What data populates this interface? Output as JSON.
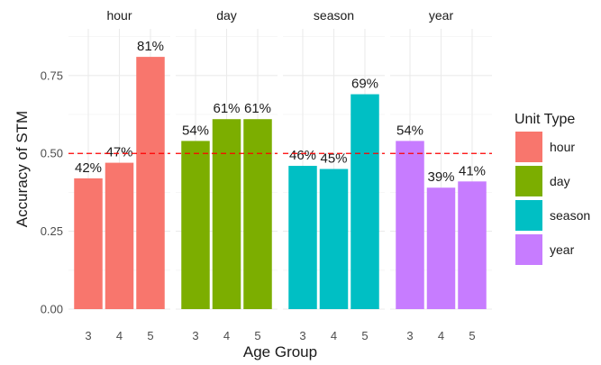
{
  "chart_data": {
    "type": "bar",
    "facet_by": "Unit Type",
    "xlabel": "Age Group",
    "ylabel": "Accuracy of STM",
    "ylim": [
      0,
      0.9
    ],
    "y_ticks": [
      0.0,
      0.25,
      0.5,
      0.75
    ],
    "y_tick_labels": [
      "0.00",
      "0.25",
      "0.50",
      "0.75"
    ],
    "reference_line": {
      "y": 0.5,
      "style": "dashed",
      "color": "#ff0000"
    },
    "grid": true,
    "legend_position": "right",
    "legend": {
      "title": "Unit Type",
      "entries": [
        {
          "label": "hour",
          "color": "#F8766D"
        },
        {
          "label": "day",
          "color": "#7CAE00"
        },
        {
          "label": "season",
          "color": "#00BFC4"
        },
        {
          "label": "year",
          "color": "#C77CFF"
        }
      ]
    },
    "facets": [
      {
        "name": "hour",
        "color": "#F8766D",
        "categories": [
          "3",
          "4",
          "5"
        ],
        "values": [
          0.42,
          0.47,
          0.81
        ],
        "labels": [
          "42%",
          "47%",
          "81%"
        ]
      },
      {
        "name": "day",
        "color": "#7CAE00",
        "categories": [
          "3",
          "4",
          "5"
        ],
        "values": [
          0.54,
          0.61,
          0.61
        ],
        "labels": [
          "54%",
          "61%",
          "61%"
        ]
      },
      {
        "name": "season",
        "color": "#00BFC4",
        "categories": [
          "3",
          "4",
          "5"
        ],
        "values": [
          0.46,
          0.45,
          0.69
        ],
        "labels": [
          "46%",
          "45%",
          "69%"
        ]
      },
      {
        "name": "year",
        "color": "#C77CFF",
        "categories": [
          "3",
          "4",
          "5"
        ],
        "values": [
          0.54,
          0.39,
          0.41
        ],
        "labels": [
          "54%",
          "39%",
          "41%"
        ]
      }
    ]
  }
}
